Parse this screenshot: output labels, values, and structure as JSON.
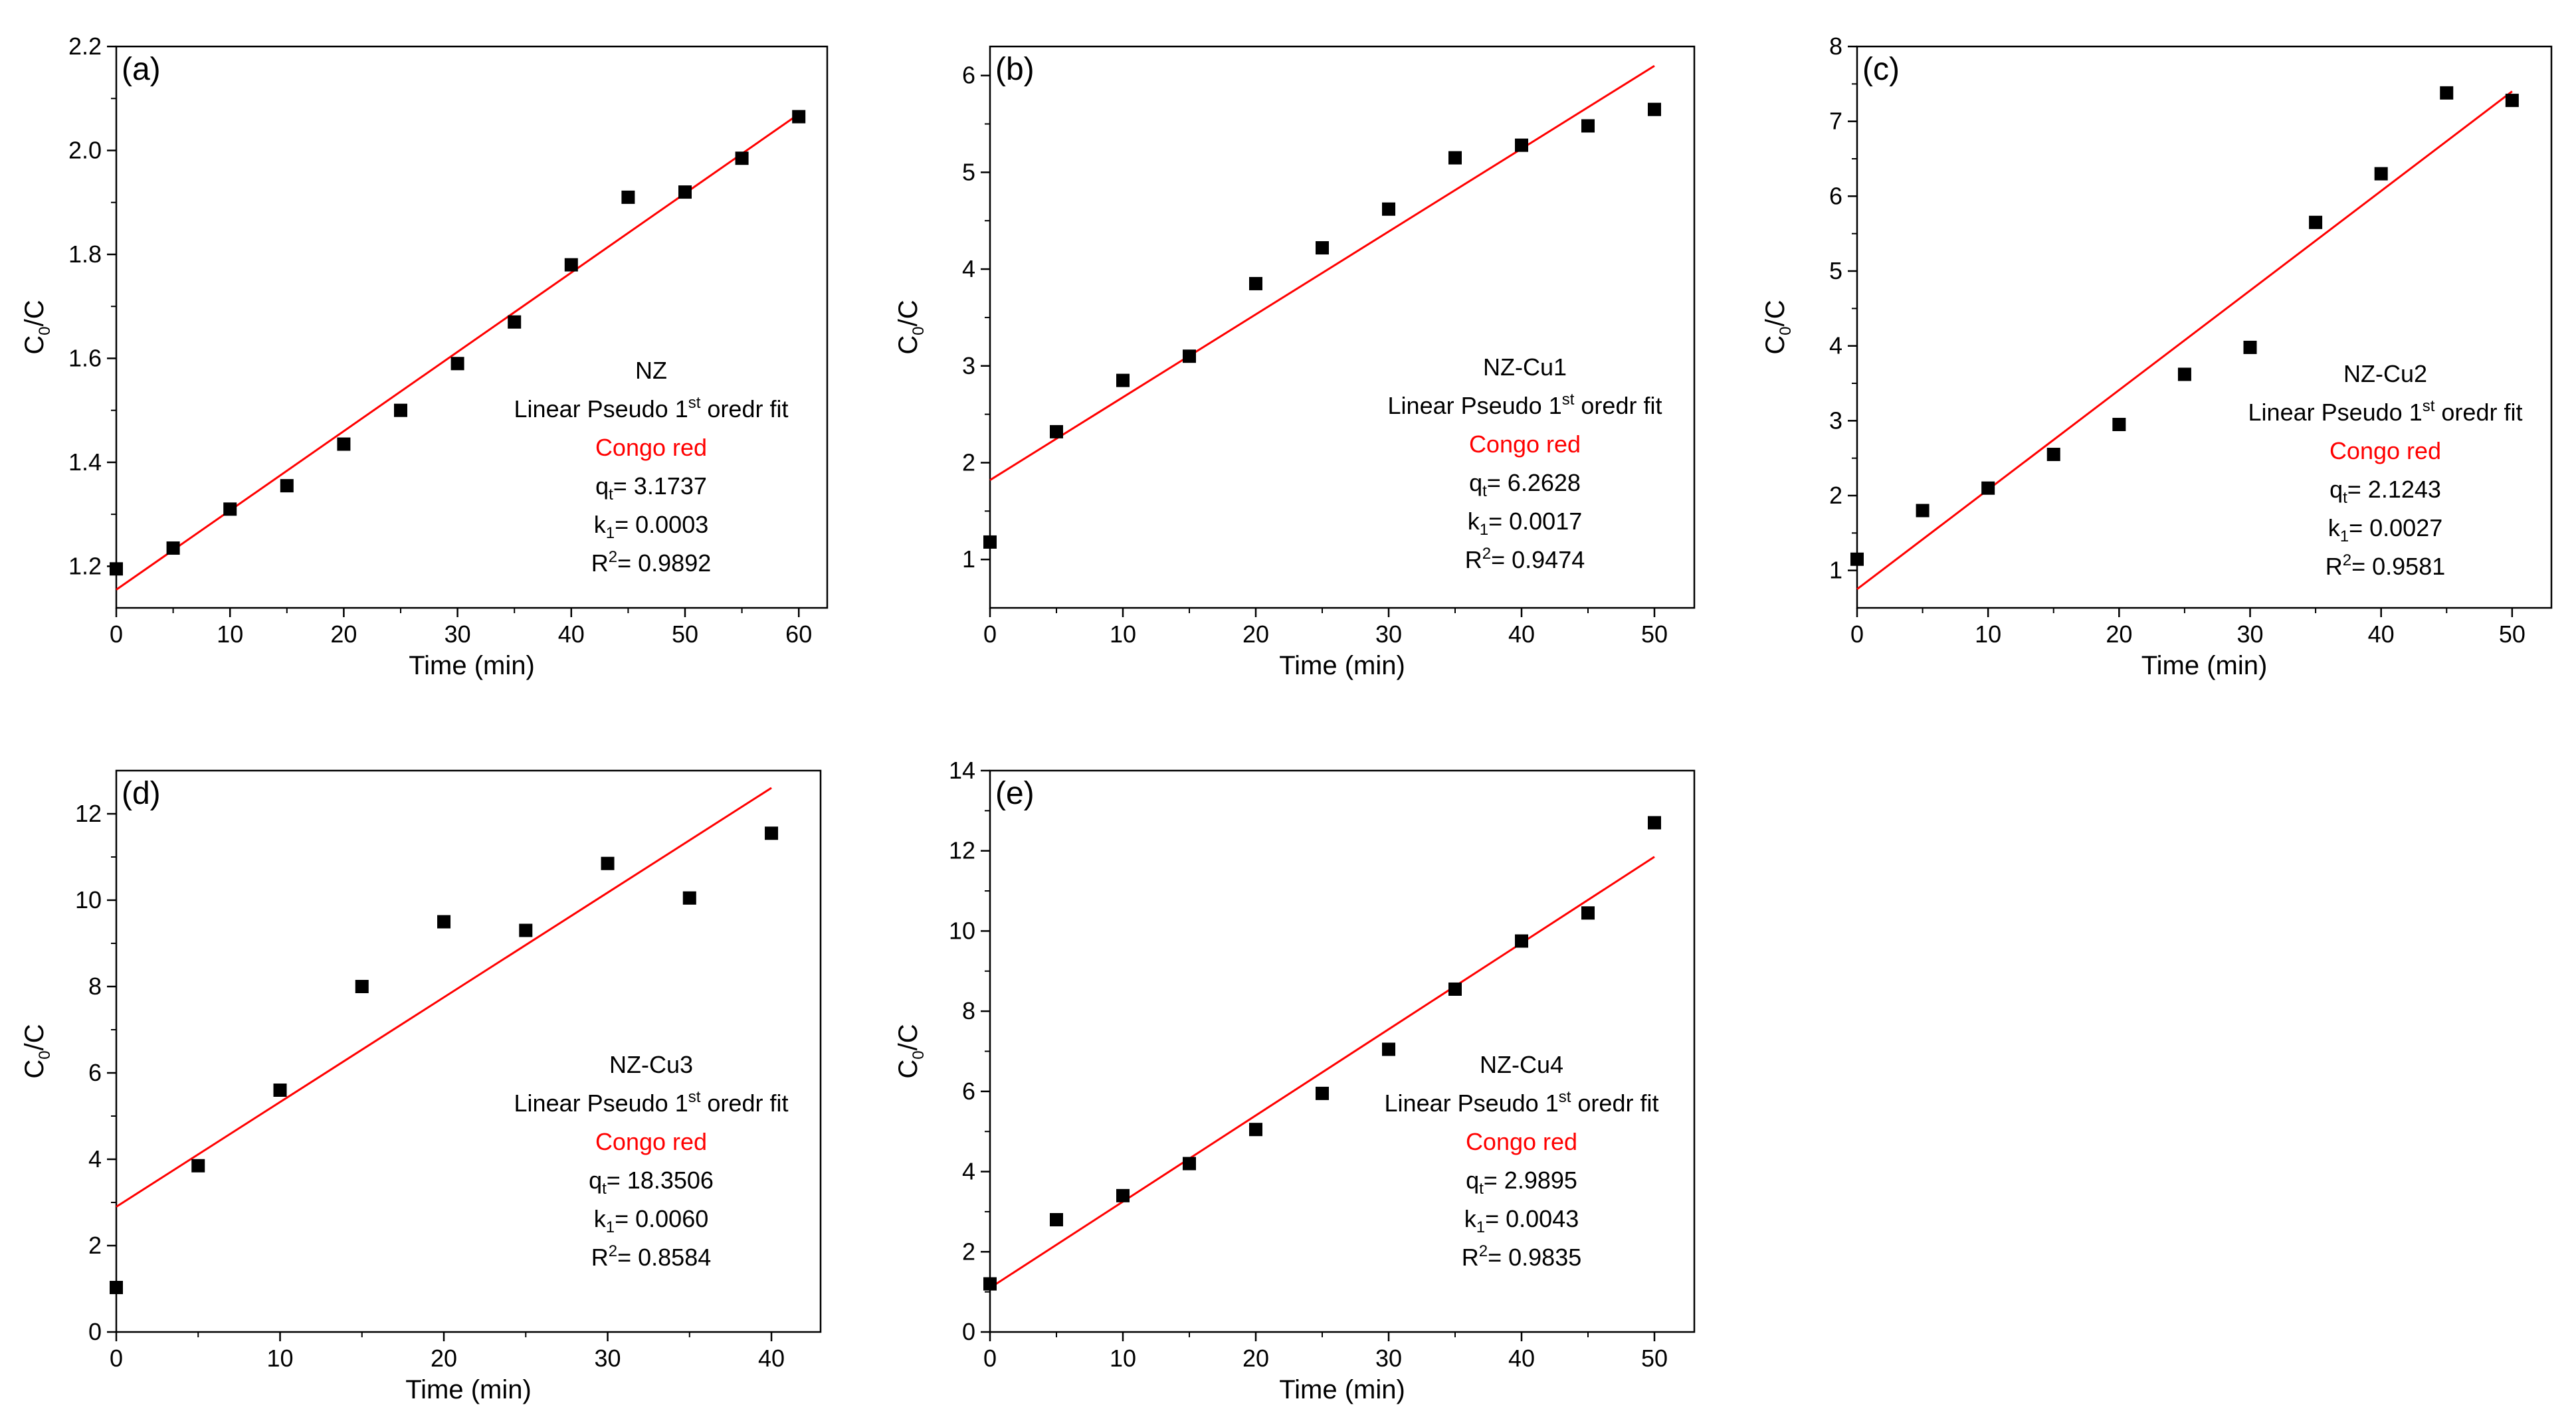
{
  "chart_data": [
    {
      "type": "scatter",
      "panel_label": "(a)",
      "xlabel": "Time (min)",
      "ylabel_main": "C",
      "ylabel_sub": "0",
      "ylabel_tail": "/C",
      "xlim": [
        0,
        62.5
      ],
      "ylim": [
        1.12,
        2.2
      ],
      "xticks": [
        0,
        10,
        20,
        30,
        40,
        50,
        60
      ],
      "yticks": [
        "1.2",
        "1.4",
        "1.6",
        "1.8",
        "2.0",
        "2.2"
      ],
      "points": [
        [
          0,
          1.195
        ],
        [
          5,
          1.235
        ],
        [
          10,
          1.31
        ],
        [
          15,
          1.355
        ],
        [
          20,
          1.435
        ],
        [
          25,
          1.5
        ],
        [
          30,
          1.59
        ],
        [
          35,
          1.67
        ],
        [
          40,
          1.78
        ],
        [
          45,
          1.91
        ],
        [
          50,
          1.92
        ],
        [
          55,
          1.985
        ],
        [
          60,
          2.065
        ]
      ],
      "fit_line": [
        [
          0,
          1.155
        ],
        [
          60,
          2.07
        ]
      ],
      "series_color": "#000000",
      "fit_color": "#ff0000",
      "annotation": {
        "sample": "NZ",
        "fit_prefix": "Linear Pseudo 1",
        "fit_sup": "st",
        "fit_suffix": " oredr fit",
        "dye": "Congo red",
        "qt_main": "q",
        "qt_sub": "t",
        "qt_value": "= 3.1737",
        "k1_main": "k",
        "k1_sub": "1",
        "k1_value": "= 0.0003",
        "r2_main": "R",
        "r2_sup": "2",
        "r2_value": "= 0.9892"
      }
    },
    {
      "type": "scatter",
      "panel_label": "(b)",
      "xlabel": "Time (min)",
      "ylabel_main": "C",
      "ylabel_sub": "0",
      "ylabel_tail": "/C",
      "xlim": [
        0,
        53
      ],
      "ylim": [
        0.5,
        6.3
      ],
      "xticks": [
        0,
        10,
        20,
        30,
        40,
        50
      ],
      "yticks": [
        "1",
        "2",
        "3",
        "4",
        "5",
        "6"
      ],
      "points": [
        [
          0,
          1.18
        ],
        [
          5,
          2.32
        ],
        [
          10,
          2.85
        ],
        [
          15,
          3.1
        ],
        [
          20,
          3.85
        ],
        [
          25,
          4.22
        ],
        [
          30,
          4.62
        ],
        [
          35,
          5.15
        ],
        [
          40,
          5.28
        ],
        [
          45,
          5.48
        ],
        [
          50,
          5.65
        ]
      ],
      "fit_line": [
        [
          0,
          1.82
        ],
        [
          50,
          6.1
        ]
      ],
      "series_color": "#000000",
      "fit_color": "#ff0000",
      "annotation": {
        "sample": "NZ-Cu1",
        "fit_prefix": "Linear Pseudo 1",
        "fit_sup": "st",
        "fit_suffix": " oredr fit",
        "dye": "Congo red",
        "qt_main": "q",
        "qt_sub": "t",
        "qt_value": "= 6.2628",
        "k1_main": "k",
        "k1_sub": "1",
        "k1_value": "= 0.0017",
        "r2_main": "R",
        "r2_sup": "2",
        "r2_value": "= 0.9474"
      }
    },
    {
      "type": "scatter",
      "panel_label": "(c)",
      "xlabel": "Time (min)",
      "ylabel_main": "C",
      "ylabel_sub": "0",
      "ylabel_tail": "/C",
      "xlim": [
        0,
        53
      ],
      "ylim": [
        0.5,
        8
      ],
      "xticks": [
        0,
        10,
        20,
        30,
        40,
        50
      ],
      "yticks": [
        "1",
        "2",
        "3",
        "4",
        "5",
        "6",
        "7",
        "8"
      ],
      "points": [
        [
          0,
          1.15
        ],
        [
          5,
          1.8
        ],
        [
          10,
          2.1
        ],
        [
          15,
          2.55
        ],
        [
          20,
          2.95
        ],
        [
          25,
          3.62
        ],
        [
          30,
          3.98
        ],
        [
          35,
          5.65
        ],
        [
          40,
          6.3
        ],
        [
          45,
          7.38
        ],
        [
          50,
          7.28
        ]
      ],
      "fit_line": [
        [
          0,
          0.75
        ],
        [
          50,
          7.4
        ]
      ],
      "series_color": "#000000",
      "fit_color": "#ff0000",
      "annotation": {
        "sample": "NZ-Cu2",
        "fit_prefix": "Linear Pseudo 1",
        "fit_sup": "st",
        "fit_suffix": " oredr fit",
        "dye": "Congo red",
        "qt_main": "q",
        "qt_sub": "t",
        "qt_value": "= 2.1243",
        "k1_main": "k",
        "k1_sub": "1",
        "k1_value": "= 0.0027",
        "r2_main": "R",
        "r2_sup": "2",
        "r2_value": "= 0.9581"
      }
    },
    {
      "type": "scatter",
      "panel_label": "(d)",
      "xlabel": "Time (min)",
      "ylabel_main": "C",
      "ylabel_sub": "0",
      "ylabel_tail": "/C",
      "xlim": [
        0,
        43
      ],
      "ylim": [
        0,
        13
      ],
      "xticks": [
        0,
        10,
        20,
        30,
        40
      ],
      "yticks": [
        "0",
        "2",
        "4",
        "6",
        "8",
        "10",
        "12"
      ],
      "points": [
        [
          0,
          1.03
        ],
        [
          5,
          3.85
        ],
        [
          10,
          5.6
        ],
        [
          15,
          8.0
        ],
        [
          20,
          9.5
        ],
        [
          25,
          9.3
        ],
        [
          30,
          10.85
        ],
        [
          35,
          10.05
        ],
        [
          40,
          11.55
        ]
      ],
      "fit_line": [
        [
          0,
          2.9
        ],
        [
          40,
          12.6
        ]
      ],
      "series_color": "#000000",
      "fit_color": "#ff0000",
      "annotation": {
        "sample": "NZ-Cu3",
        "fit_prefix": "Linear Pseudo 1",
        "fit_sup": "st",
        "fit_suffix": " oredr fit",
        "dye": "Congo red",
        "qt_main": "q",
        "qt_sub": "t",
        "qt_value": "= 18.3506",
        "k1_main": "k",
        "k1_sub": "1",
        "k1_value": "= 0.0060",
        "r2_main": "R",
        "r2_sup": "2",
        "r2_value": "= 0.8584"
      }
    },
    {
      "type": "scatter",
      "panel_label": "(e)",
      "xlabel": "Time (min)",
      "ylabel_main": "C",
      "ylabel_sub": "0",
      "ylabel_tail": "/C",
      "xlim": [
        0,
        53
      ],
      "ylim": [
        0,
        14
      ],
      "xticks": [
        0,
        10,
        20,
        30,
        40,
        50
      ],
      "yticks": [
        "0",
        "2",
        "4",
        "6",
        "8",
        "10",
        "12",
        "14"
      ],
      "points": [
        [
          0,
          1.2
        ],
        [
          5,
          2.8
        ],
        [
          10,
          3.4
        ],
        [
          15,
          4.2
        ],
        [
          20,
          5.05
        ],
        [
          25,
          5.95
        ],
        [
          30,
          7.05
        ],
        [
          35,
          8.55
        ],
        [
          40,
          9.75
        ],
        [
          45,
          10.45
        ],
        [
          50,
          12.7
        ]
      ],
      "fit_line": [
        [
          0,
          1.1
        ],
        [
          50,
          11.85
        ]
      ],
      "series_color": "#000000",
      "fit_color": "#ff0000",
      "annotation": {
        "sample": "NZ-Cu4",
        "fit_prefix": "Linear Pseudo 1",
        "fit_sup": "st",
        "fit_suffix": " oredr fit",
        "dye": "Congo red",
        "qt_main": "q",
        "qt_sub": "t",
        "qt_value": "= 2.9895",
        "k1_main": "k",
        "k1_sub": "1",
        "k1_value": "= 0.0043",
        "r2_main": "R",
        "r2_sup": "2",
        "r2_value": "= 0.9835"
      }
    }
  ]
}
